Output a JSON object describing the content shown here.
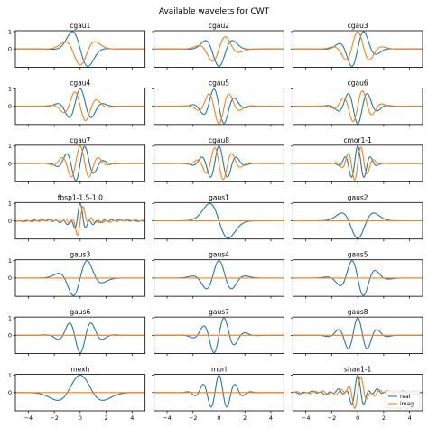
{
  "chart_data": {
    "type": "line",
    "title": "Available wavelets for CWT",
    "grid": false,
    "layout": {
      "rows": 7,
      "cols": 3
    },
    "colors": {
      "real": "#1f77b4",
      "imag": "#ff7f0e"
    },
    "xlim": [
      -5,
      5
    ],
    "xticks": [
      -4,
      -2,
      0,
      2,
      4
    ],
    "ylim": [
      -1.05,
      1.05
    ],
    "yticks": [
      0,
      1
    ],
    "legend": {
      "panel": 20,
      "placement": "lower-right",
      "entries": [
        "real",
        "imag"
      ]
    },
    "panels": [
      {
        "name": "cgau1",
        "kind": "cgau",
        "order": 1,
        "complex": true
      },
      {
        "name": "cgau2",
        "kind": "cgau",
        "order": 2,
        "complex": true
      },
      {
        "name": "cgau3",
        "kind": "cgau",
        "order": 3,
        "complex": true
      },
      {
        "name": "cgau4",
        "kind": "cgau",
        "order": 4,
        "complex": true
      },
      {
        "name": "cgau5",
        "kind": "cgau",
        "order": 5,
        "complex": true
      },
      {
        "name": "cgau6",
        "kind": "cgau",
        "order": 6,
        "complex": true
      },
      {
        "name": "cgau7",
        "kind": "cgau",
        "order": 7,
        "complex": true
      },
      {
        "name": "cgau8",
        "kind": "cgau",
        "order": 8,
        "complex": true
      },
      {
        "name": "cmor1-1",
        "kind": "cmor",
        "bandwidth": 1,
        "center": 1,
        "complex": true
      },
      {
        "name": "fbsp1-1.5-1.0",
        "kind": "fbsp",
        "m": 1,
        "bandwidth": 1.5,
        "center": 1.0,
        "complex": true
      },
      {
        "name": "gaus1",
        "kind": "gaus",
        "order": 1,
        "complex": false
      },
      {
        "name": "gaus2",
        "kind": "gaus",
        "order": 2,
        "complex": false
      },
      {
        "name": "gaus3",
        "kind": "gaus",
        "order": 3,
        "complex": false
      },
      {
        "name": "gaus4",
        "kind": "gaus",
        "order": 4,
        "complex": false
      },
      {
        "name": "gaus5",
        "kind": "gaus",
        "order": 5,
        "complex": false
      },
      {
        "name": "gaus6",
        "kind": "gaus",
        "order": 6,
        "complex": false
      },
      {
        "name": "gaus7",
        "kind": "gaus",
        "order": 7,
        "complex": false
      },
      {
        "name": "gaus8",
        "kind": "gaus",
        "order": 8,
        "complex": false
      },
      {
        "name": "mexh",
        "kind": "mexh",
        "complex": false
      },
      {
        "name": "morl",
        "kind": "morl",
        "complex": false
      },
      {
        "name": "shan1-1",
        "kind": "shan",
        "bandwidth": 1,
        "center": 1,
        "complex": true
      }
    ]
  }
}
